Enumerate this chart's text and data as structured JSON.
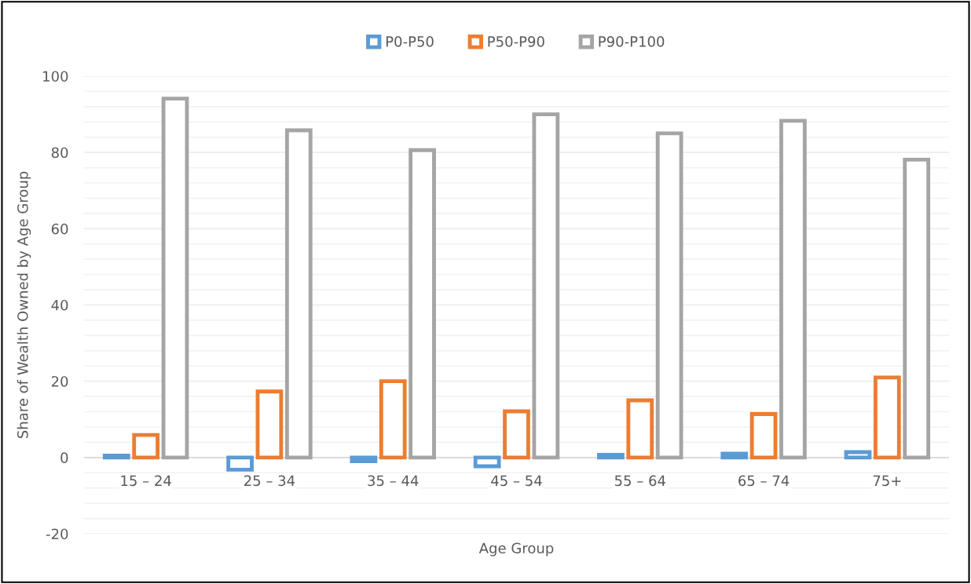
{
  "chart_data": {
    "type": "bar",
    "xlabel": "Age Group",
    "ylabel": "Share of Wealth Owned by Age Group",
    "categories": [
      "15 – 24",
      "25 – 34",
      "35 – 44",
      "45 – 54",
      "55 – 64",
      "65 – 74",
      "75+"
    ],
    "series": [
      {
        "name": "P0-P50",
        "color": "#5b9bd5",
        "values": [
          0.5,
          -3.2,
          -1.0,
          -2.3,
          0.7,
          1.0,
          1.4
        ]
      },
      {
        "name": "P50-P90",
        "color": "#ed7d31",
        "values": [
          5.9,
          17.3,
          20.0,
          12.1,
          15.0,
          11.4,
          21.0
        ]
      },
      {
        "name": "P90-P100",
        "color": "#a5a5a5",
        "values": [
          94.1,
          85.8,
          80.6,
          90.0,
          85.0,
          88.3,
          78.1
        ]
      }
    ],
    "ylim": [
      -20,
      100
    ],
    "yticks": [
      -20,
      0,
      20,
      40,
      60,
      80,
      100
    ],
    "grid": "y",
    "legend": "top"
  }
}
